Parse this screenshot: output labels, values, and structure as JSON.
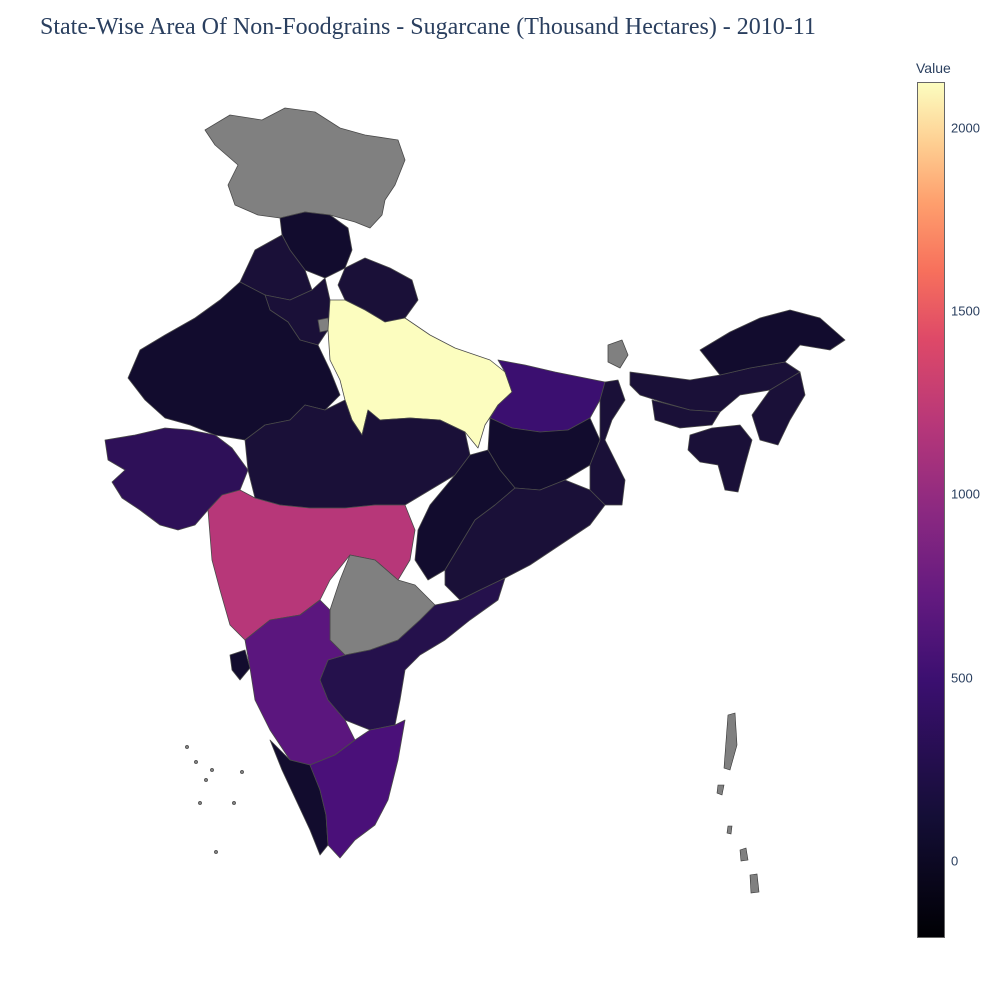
{
  "title": "State-Wise Area Of Non-Foodgrains - Sugarcane (Thousand Hectares) - 2010-11",
  "colorbar": {
    "title": "Value",
    "ticks": [
      "2000",
      "1500",
      "1000",
      "500",
      "0"
    ],
    "colorscale": "magma",
    "min": -230,
    "max": 2130
  },
  "colors": {
    "uttar_pradesh": "#fcfdbf",
    "maharashtra": "#b73779",
    "karnataka": "#5b167e",
    "tamil_nadu": "#4a1079",
    "bihar": "#3b0f70",
    "gujarat": "#2e1058",
    "andhra_pradesh": "#25114c",
    "low": "#1a1038",
    "very_low": "#120c2e",
    "no_data": "#808080"
  }
}
